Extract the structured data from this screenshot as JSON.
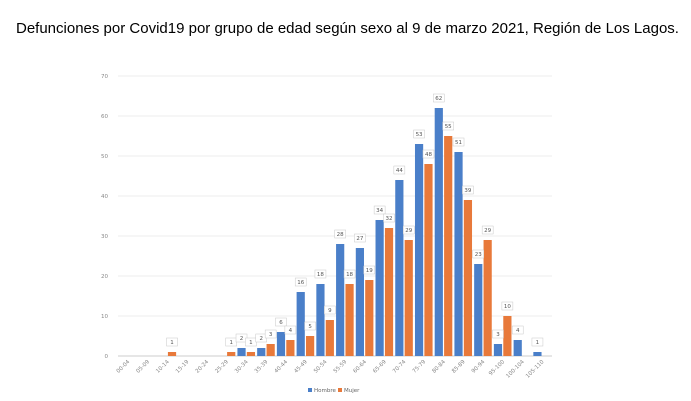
{
  "chart_data": {
    "type": "bar",
    "title": "Defunciones por Covid19 por grupo de edad según sexo al 9 de marzo 2021, Región de Los Lagos.",
    "xlabel": "",
    "ylabel": "",
    "ylim": [
      0,
      70
    ],
    "yticks": [
      0,
      10,
      20,
      30,
      40,
      50,
      60,
      70
    ],
    "grid": true,
    "legend_position": "bottom",
    "categories": [
      "00-04",
      "05-09",
      "10-14",
      "15-19",
      "20-24",
      "25-29",
      "30-34",
      "35-39",
      "40-44",
      "45-49",
      "50-54",
      "55-59",
      "60-64",
      "65-69",
      "70-74",
      "75-79",
      "80-84",
      "85-89",
      "90-94",
      "95-100",
      "100-104",
      "105-110"
    ],
    "series": [
      {
        "name": "Hombre",
        "color": "#4a7fc9",
        "values": [
          0,
          0,
          0,
          0,
          0,
          0,
          2,
          2,
          6,
          16,
          18,
          28,
          27,
          34,
          44,
          53,
          62,
          51,
          23,
          3,
          4,
          1
        ],
        "labels": [
          "",
          "",
          "",
          "",
          "",
          "",
          "2",
          "2",
          "6",
          "16",
          "18",
          "28",
          "27",
          "34",
          "44",
          "53",
          "62",
          "51",
          "23",
          "3",
          "4",
          "1"
        ]
      },
      {
        "name": "Mujer",
        "color": "#e8793a",
        "values": [
          0,
          0,
          1,
          0,
          0,
          1,
          1,
          3,
          4,
          5,
          9,
          18,
          19,
          32,
          29,
          48,
          55,
          39,
          29,
          10,
          0,
          0
        ],
        "labels": [
          "",
          "",
          "1",
          "",
          "",
          "1",
          "1",
          "3",
          "4",
          "5",
          "9",
          "18",
          "19",
          "32",
          "29",
          "48",
          "55",
          "39",
          "29",
          "10",
          "",
          ""
        ]
      }
    ]
  }
}
